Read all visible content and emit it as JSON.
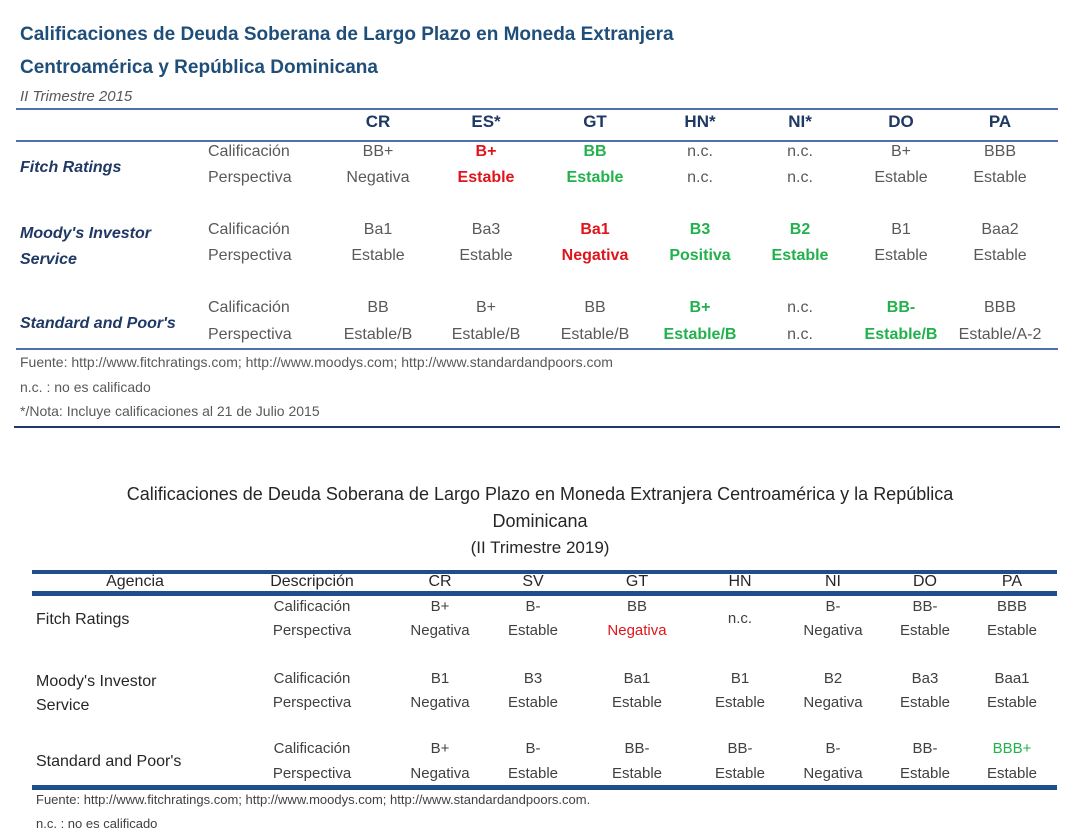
{
  "table2015": {
    "title_line1": "Calificaciones de Deuda Soberana de Largo Plazo en Moneda Extranjera",
    "title_line2": "Centroamérica y República Dominicana",
    "subtitle": "II Trimestre 2015",
    "columns": [
      "CR",
      "ES*",
      "GT",
      "HN*",
      "NI*",
      "DO",
      "PA"
    ],
    "desc_labels": [
      "Calificación",
      "Perspectiva"
    ],
    "rows": [
      {
        "agency": "Fitch Ratings",
        "cells": [
          {
            "rating": "BB+",
            "outlook": "Negativa",
            "color": null
          },
          {
            "rating": "B+",
            "outlook": "Estable",
            "color": "#e0151b"
          },
          {
            "rating": "BB",
            "outlook": "Estable",
            "color": "#22b14c"
          },
          {
            "rating": "n.c.",
            "outlook": "n.c.",
            "color": null
          },
          {
            "rating": "n.c.",
            "outlook": "n.c.",
            "color": null
          },
          {
            "rating": "B+",
            "outlook": "Estable",
            "color": null
          },
          {
            "rating": "BBB",
            "outlook": "Estable",
            "color": null
          }
        ]
      },
      {
        "agency": "Moody's Investor Service",
        "cells": [
          {
            "rating": "Ba1",
            "outlook": "Estable",
            "color": null
          },
          {
            "rating": "Ba3",
            "outlook": "Estable",
            "color": null
          },
          {
            "rating": "Ba1",
            "outlook": "Negativa",
            "color": "#e0151b"
          },
          {
            "rating": "B3",
            "outlook": "Positiva",
            "color": "#22b14c"
          },
          {
            "rating": "B2",
            "outlook": "Estable",
            "color": "#22b14c"
          },
          {
            "rating": "B1",
            "outlook": "Estable",
            "color": null
          },
          {
            "rating": "Baa2",
            "outlook": "Estable",
            "color": null
          }
        ]
      },
      {
        "agency": "Standard and Poor's",
        "cells": [
          {
            "rating": "BB",
            "outlook": "Estable/B",
            "color": null
          },
          {
            "rating": "B+",
            "outlook": "Estable/B",
            "color": null
          },
          {
            "rating": "BB",
            "outlook": "Estable/B",
            "color": null
          },
          {
            "rating": "B+",
            "outlook": "Estable/B",
            "color": "#22b14c"
          },
          {
            "rating": "n.c.",
            "outlook": "n.c.",
            "color": null
          },
          {
            "rating": "BB-",
            "outlook": "Estable/B",
            "color": "#22b14c"
          },
          {
            "rating": "BBB",
            "outlook": "Estable/A-2",
            "color": null
          }
        ]
      }
    ],
    "footnotes": [
      "Fuente:  http://www.fitchratings.com; http://www.moodys.com; http://www.standardandpoors.com",
      "n.c. : no es calificado",
      "*/Nota: Incluye calificaciones al 21 de Julio 2015"
    ]
  },
  "table2019": {
    "title_line1": "Calificaciones de Deuda Soberana de Largo Plazo en Moneda Extranjera Centroamérica y la República",
    "title_line2": "Dominicana",
    "subtitle": "(II Trimestre 2019)",
    "header_agency": "Agencia",
    "header_desc": "Descripción",
    "columns": [
      "CR",
      "SV",
      "GT",
      "HN",
      "NI",
      "DO",
      "PA"
    ],
    "desc_labels": [
      "Calificación",
      "Perspectiva"
    ],
    "rows": [
      {
        "agency": "Fitch Ratings",
        "cells": [
          {
            "rating": "B+",
            "outlook": "Negativa"
          },
          {
            "rating": "B-",
            "outlook": "Estable"
          },
          {
            "rating": "BB",
            "outlook": "Negativa",
            "outlook_color": "#e0151b"
          },
          {
            "merged": "n.c."
          },
          {
            "rating": "B-",
            "outlook": "Negativa"
          },
          {
            "rating": "BB-",
            "outlook": "Estable"
          },
          {
            "rating": "BBB",
            "outlook": "Estable"
          }
        ]
      },
      {
        "agency": "Moody's Investor Service",
        "cells": [
          {
            "rating": "B1",
            "outlook": "Negativa"
          },
          {
            "rating": "B3",
            "outlook": "Estable"
          },
          {
            "rating": "Ba1",
            "outlook": "Estable"
          },
          {
            "rating": "B1",
            "outlook": "Estable"
          },
          {
            "rating": "B2",
            "outlook": "Negativa"
          },
          {
            "rating": "Ba3",
            "outlook": "Estable"
          },
          {
            "rating": "Baa1",
            "outlook": "Estable"
          }
        ]
      },
      {
        "agency": "Standard and Poor's",
        "cells": [
          {
            "rating": "B+",
            "outlook": "Negativa"
          },
          {
            "rating": "B-",
            "outlook": "Estable"
          },
          {
            "rating": "BB-",
            "outlook": "Estable"
          },
          {
            "rating": "BB-",
            "outlook": "Estable"
          },
          {
            "rating": "B-",
            "outlook": "Negativa"
          },
          {
            "rating": "BB-",
            "outlook": "Estable"
          },
          {
            "rating": "BBB+",
            "outlook": "Estable",
            "rating_color": "#22b14c"
          }
        ]
      }
    ],
    "footnotes": [
      "Fuente:  http://www.fitchratings.com; http://www.moodys.com; http://www.standardandpoors.com.",
      "n.c. : no es calificado"
    ]
  }
}
